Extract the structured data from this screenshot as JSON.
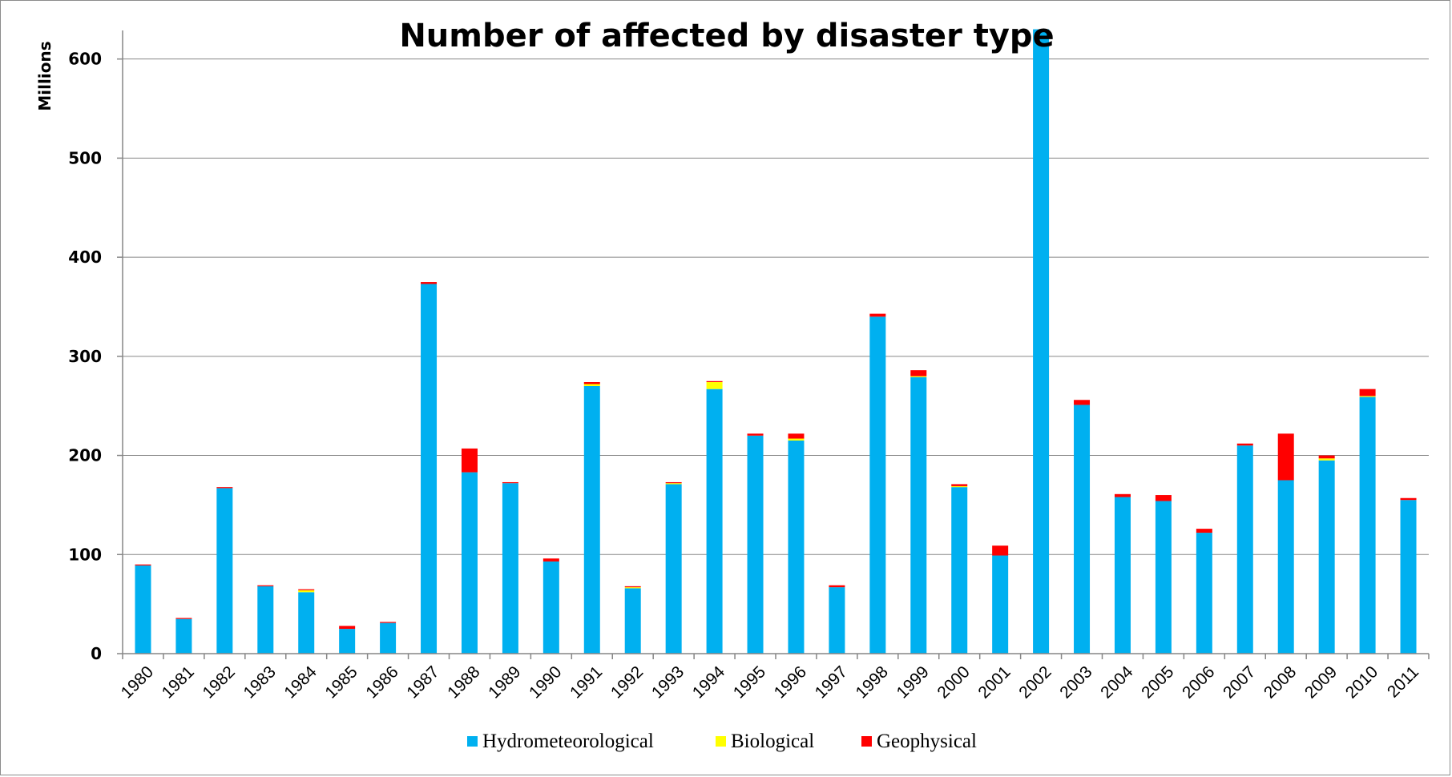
{
  "chart_data": {
    "type": "bar",
    "stacked": true,
    "title": "Number of affected by disaster type",
    "ylabel": "Millions",
    "xlabel": "",
    "ylim": [
      0,
      630
    ],
    "yticks": [
      0,
      100,
      200,
      300,
      400,
      500,
      600
    ],
    "grid": true,
    "legend_position": "bottom",
    "categories": [
      "1980",
      "1981",
      "1982",
      "1983",
      "1984",
      "1985",
      "1986",
      "1987",
      "1988",
      "1989",
      "1990",
      "1991",
      "1992",
      "1993",
      "1994",
      "1995",
      "1996",
      "1997",
      "1998",
      "1999",
      "2000",
      "2001",
      "2002",
      "2003",
      "2004",
      "2005",
      "2006",
      "2007",
      "2008",
      "2009",
      "2010",
      "2011"
    ],
    "series": [
      {
        "name": "Hydrometeorological",
        "color": "#00b0f0",
        "values": [
          89,
          35,
          167,
          68,
          62,
          25,
          31,
          373,
          183,
          172,
          93,
          270,
          66,
          171,
          267,
          220,
          215,
          67,
          340,
          279,
          168,
          99,
          630,
          251,
          158,
          154,
          122,
          210,
          175,
          195,
          259,
          155
        ]
      },
      {
        "name": "Biological",
        "color": "#ffff00",
        "values": [
          0,
          0,
          0,
          0,
          2,
          0,
          0,
          0,
          0,
          0,
          0,
          2,
          1,
          1,
          7,
          0,
          2,
          0,
          0,
          1,
          1,
          0,
          0,
          0,
          0,
          0,
          0,
          0,
          0,
          2,
          1,
          0
        ]
      },
      {
        "name": "Geophysical",
        "color": "#ff0000",
        "values": [
          1,
          1,
          1,
          1,
          1,
          3,
          1,
          2,
          24,
          1,
          3,
          2,
          1,
          1,
          1,
          2,
          5,
          2,
          3,
          6,
          2,
          10,
          0,
          5,
          3,
          6,
          4,
          2,
          47,
          3,
          7,
          2
        ]
      }
    ]
  }
}
